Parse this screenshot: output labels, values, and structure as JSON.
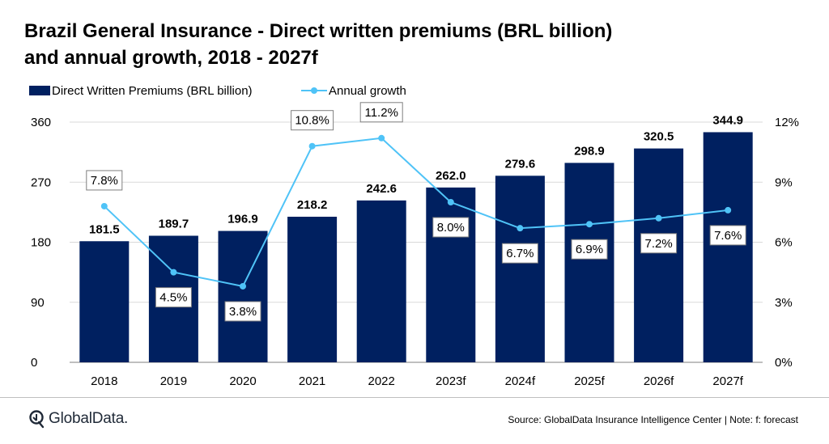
{
  "title": {
    "line1": "Brazil General Insurance - Direct written premiums (BRL billion)",
    "line2": "and annual growth, 2018 - 2027f"
  },
  "colors": {
    "bar": "#002060",
    "line": "#4fc3f7",
    "grid": "#d9d9d9"
  },
  "chart_data": {
    "type": "bar",
    "categories": [
      "2018",
      "2019",
      "2020",
      "2021",
      "2022",
      "2023f",
      "2024f",
      "2025f",
      "2026f",
      "2027f"
    ],
    "series": [
      {
        "name": "Direct Written Premiums (BRL billion)",
        "type": "bar",
        "axis": "left",
        "values": [
          181.5,
          189.7,
          196.9,
          218.2,
          242.6,
          262.0,
          279.6,
          298.9,
          320.5,
          344.9
        ],
        "labels": [
          "181.5",
          "189.7",
          "196.9",
          "218.2",
          "242.6",
          "262.0",
          "279.6",
          "298.9",
          "320.5",
          "344.9"
        ]
      },
      {
        "name": "Annual growth",
        "type": "line",
        "axis": "right",
        "values": [
          7.8,
          4.5,
          3.8,
          10.8,
          11.2,
          8.0,
          6.7,
          6.9,
          7.2,
          7.6
        ],
        "labels": [
          "7.8%",
          "4.5%",
          "3.8%",
          "10.8%",
          "11.2%",
          "8.0%",
          "6.7%",
          "6.9%",
          "7.2%",
          "7.6%"
        ]
      }
    ],
    "ylim_left": [
      0,
      360
    ],
    "yticks_left": [
      "0",
      "90",
      "180",
      "270",
      "360"
    ],
    "ylim_right": [
      0,
      12
    ],
    "yticks_right": [
      "0%",
      "3%",
      "6%",
      "9%",
      "12%"
    ],
    "legend_position": "top-left",
    "grid": true
  },
  "footer": {
    "logo": "GlobalData.",
    "source": "Source: GlobalData Insurance Intelligence Center | Note: f: forecast"
  }
}
